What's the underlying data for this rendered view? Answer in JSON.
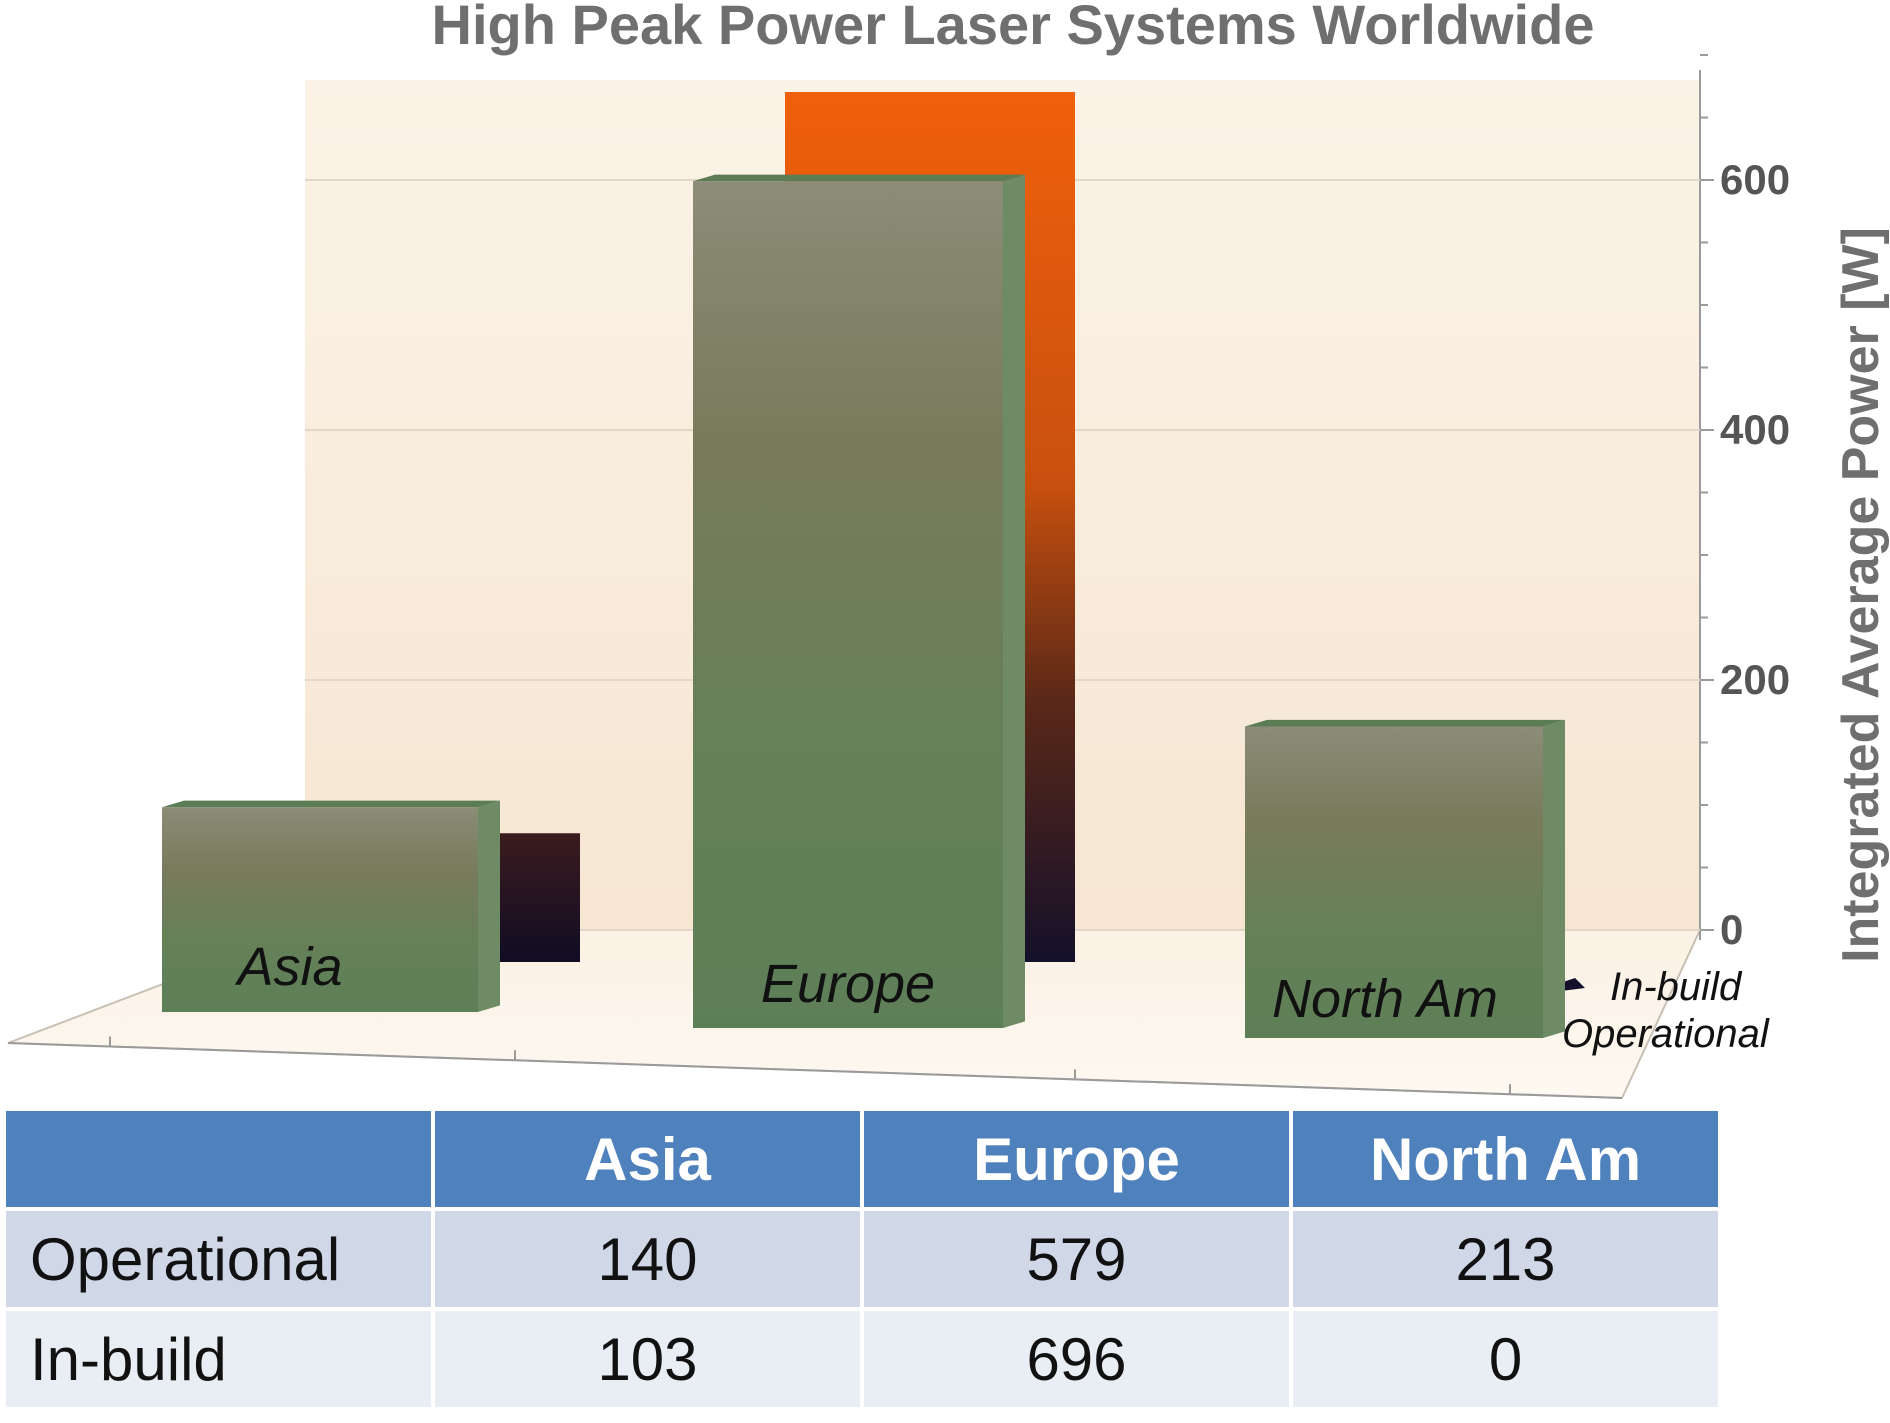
{
  "chart_data": {
    "type": "bar",
    "title": "High Peak Power Laser Systems Worldwide",
    "ylabel": "Integrated Average Power [W]",
    "ylim": [
      0,
      700
    ],
    "yticks": [
      0,
      200,
      400,
      600
    ],
    "categories": [
      "Asia",
      "Europe",
      "North Am"
    ],
    "series": [
      {
        "name": "In-build",
        "values": [
          103,
          696,
          0
        ],
        "color": "#e8600c"
      },
      {
        "name": "Operational",
        "values": [
          140,
          579,
          213
        ],
        "color": "#5f7f58"
      }
    ],
    "grid": true
  },
  "table": {
    "corner": "",
    "headers": [
      "Asia",
      "Europe",
      "North Am"
    ],
    "rows": [
      {
        "label": "Operational",
        "values": [
          "140",
          "579",
          "213"
        ]
      },
      {
        "label": "In-build",
        "values": [
          "103",
          "696",
          "0"
        ]
      }
    ],
    "header_color": "#4f81bd"
  }
}
